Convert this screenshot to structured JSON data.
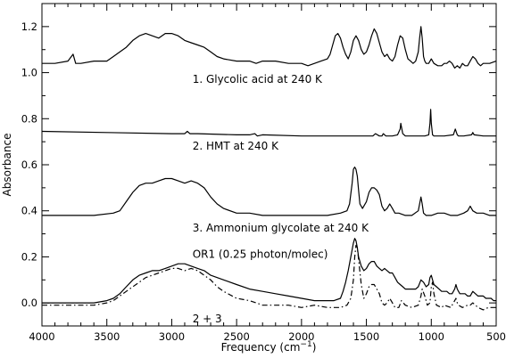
{
  "chart_data": {
    "type": "line",
    "xlabel_main": "Frequency (cm",
    "xlabel_sup": "−1",
    "xlabel_end": ")",
    "ylabel": "Absorbance",
    "xlim": [
      4000,
      500
    ],
    "ylim": [
      -0.1,
      1.3
    ],
    "x_reversed": true,
    "x_ticks": [
      4000,
      3500,
      3000,
      2500,
      2000,
      1500,
      1000,
      500
    ],
    "x_tick_labels": [
      "4000",
      "3500",
      "3000",
      "2500",
      "2000",
      "1500",
      "1000",
      "500"
    ],
    "y_ticks": [
      0.0,
      0.2,
      0.4,
      0.6,
      0.8,
      1.0,
      1.2
    ],
    "y_tick_labels": [
      "0.0",
      "0.2",
      "0.4",
      "0.6",
      "0.8",
      "1.0",
      "1.2"
    ],
    "grid": false,
    "legend": "none",
    "annotations": [
      {
        "text": "1. Glycolic acid at 240 K",
        "x": 2840,
        "y": 0.955
      },
      {
        "text": "2. HMT at 240 K",
        "x": 2840,
        "y": 0.665
      },
      {
        "text": "3. Ammonium glycolate at 240 K",
        "x": 2840,
        "y": 0.31
      },
      {
        "text": "OR1 (0.25 photon/molec)",
        "x": 2840,
        "y": 0.195
      },
      {
        "text": "2 + 3",
        "x": 2840,
        "y": -0.085
      }
    ],
    "series": [
      {
        "style": "solid",
        "x": [
          4000,
          3900,
          3800,
          3760,
          3740,
          3720,
          3700,
          3600,
          3500,
          3450,
          3400,
          3350,
          3300,
          3250,
          3200,
          3150,
          3100,
          3050,
          3000,
          2950,
          2900,
          2850,
          2800,
          2750,
          2700,
          2650,
          2600,
          2500,
          2400,
          2350,
          2300,
          2200,
          2100,
          2000,
          1950,
          1900,
          1850,
          1800,
          1780,
          1760,
          1740,
          1720,
          1700,
          1680,
          1660,
          1640,
          1620,
          1600,
          1580,
          1560,
          1540,
          1520,
          1500,
          1480,
          1460,
          1440,
          1420,
          1400,
          1380,
          1360,
          1340,
          1320,
          1300,
          1280,
          1260,
          1240,
          1220,
          1200,
          1180,
          1160,
          1140,
          1120,
          1100,
          1090,
          1080,
          1070,
          1060,
          1050,
          1040,
          1020,
          1000,
          980,
          950,
          920,
          900,
          880,
          860,
          840,
          820,
          800,
          780,
          760,
          740,
          720,
          700,
          680,
          660,
          640,
          620,
          600,
          550,
          500
        ],
        "y": [
          1.04,
          1.04,
          1.05,
          1.08,
          1.04,
          1.04,
          1.04,
          1.05,
          1.05,
          1.07,
          1.09,
          1.11,
          1.14,
          1.16,
          1.17,
          1.16,
          1.15,
          1.17,
          1.17,
          1.16,
          1.14,
          1.13,
          1.12,
          1.11,
          1.09,
          1.07,
          1.06,
          1.05,
          1.05,
          1.04,
          1.05,
          1.05,
          1.04,
          1.04,
          1.03,
          1.04,
          1.05,
          1.06,
          1.08,
          1.12,
          1.16,
          1.17,
          1.15,
          1.11,
          1.08,
          1.06,
          1.09,
          1.14,
          1.16,
          1.14,
          1.1,
          1.08,
          1.09,
          1.12,
          1.16,
          1.19,
          1.17,
          1.13,
          1.09,
          1.07,
          1.08,
          1.06,
          1.05,
          1.07,
          1.12,
          1.16,
          1.15,
          1.1,
          1.06,
          1.05,
          1.04,
          1.05,
          1.09,
          1.15,
          1.2,
          1.15,
          1.07,
          1.05,
          1.04,
          1.04,
          1.06,
          1.04,
          1.03,
          1.03,
          1.04,
          1.04,
          1.05,
          1.04,
          1.02,
          1.03,
          1.02,
          1.04,
          1.03,
          1.03,
          1.05,
          1.07,
          1.06,
          1.04,
          1.03,
          1.04,
          1.04,
          1.05
        ]
      },
      {
        "style": "solid",
        "x": [
          4000,
          3500,
          3000,
          2900,
          2880,
          2860,
          2800,
          2500,
          2400,
          2360,
          2340,
          2300,
          2000,
          1700,
          1500,
          1450,
          1430,
          1400,
          1380,
          1370,
          1350,
          1300,
          1260,
          1240,
          1235,
          1220,
          1200,
          1100,
          1050,
          1020,
          1010,
          1005,
          1000,
          990,
          980,
          950,
          900,
          830,
          815,
          800,
          790,
          750,
          690,
          680,
          670,
          600,
          500
        ],
        "y": [
          0.745,
          0.74,
          0.735,
          0.735,
          0.745,
          0.735,
          0.735,
          0.73,
          0.73,
          0.735,
          0.725,
          0.73,
          0.725,
          0.725,
          0.725,
          0.725,
          0.735,
          0.725,
          0.725,
          0.735,
          0.725,
          0.725,
          0.73,
          0.755,
          0.78,
          0.735,
          0.725,
          0.725,
          0.725,
          0.73,
          0.78,
          0.84,
          0.78,
          0.73,
          0.725,
          0.725,
          0.725,
          0.73,
          0.755,
          0.73,
          0.725,
          0.725,
          0.73,
          0.74,
          0.73,
          0.725,
          0.725
        ]
      },
      {
        "style": "solid",
        "x": [
          4000,
          3800,
          3600,
          3450,
          3400,
          3350,
          3300,
          3250,
          3200,
          3150,
          3100,
          3050,
          3000,
          2950,
          2900,
          2850,
          2800,
          2750,
          2700,
          2650,
          2600,
          2500,
          2400,
          2300,
          2200,
          2100,
          2000,
          1800,
          1700,
          1650,
          1630,
          1610,
          1600,
          1590,
          1580,
          1570,
          1560,
          1550,
          1530,
          1500,
          1480,
          1460,
          1440,
          1420,
          1400,
          1380,
          1360,
          1340,
          1320,
          1300,
          1280,
          1250,
          1200,
          1150,
          1100,
          1090,
          1080,
          1070,
          1060,
          1040,
          1000,
          950,
          900,
          850,
          800,
          750,
          720,
          700,
          680,
          650,
          600,
          550,
          500
        ],
        "y": [
          0.38,
          0.38,
          0.38,
          0.39,
          0.4,
          0.44,
          0.48,
          0.51,
          0.52,
          0.52,
          0.53,
          0.54,
          0.54,
          0.53,
          0.52,
          0.53,
          0.52,
          0.5,
          0.46,
          0.43,
          0.41,
          0.39,
          0.39,
          0.38,
          0.38,
          0.38,
          0.38,
          0.38,
          0.39,
          0.4,
          0.43,
          0.52,
          0.58,
          0.59,
          0.58,
          0.55,
          0.49,
          0.43,
          0.41,
          0.44,
          0.48,
          0.5,
          0.5,
          0.49,
          0.47,
          0.42,
          0.4,
          0.41,
          0.43,
          0.41,
          0.39,
          0.39,
          0.38,
          0.38,
          0.4,
          0.43,
          0.46,
          0.43,
          0.39,
          0.38,
          0.38,
          0.39,
          0.39,
          0.38,
          0.38,
          0.39,
          0.4,
          0.42,
          0.4,
          0.39,
          0.39,
          0.38,
          0.38
        ]
      },
      {
        "style": "solid",
        "x": [
          4000,
          3800,
          3600,
          3500,
          3450,
          3400,
          3350,
          3300,
          3250,
          3200,
          3150,
          3100,
          3050,
          3000,
          2950,
          2900,
          2850,
          2800,
          2750,
          2700,
          2600,
          2500,
          2400,
          2300,
          2200,
          2100,
          2000,
          1900,
          1800,
          1750,
          1700,
          1680,
          1660,
          1640,
          1620,
          1600,
          1590,
          1580,
          1570,
          1560,
          1540,
          1520,
          1500,
          1480,
          1460,
          1440,
          1420,
          1400,
          1380,
          1360,
          1340,
          1320,
          1300,
          1280,
          1260,
          1240,
          1220,
          1200,
          1150,
          1120,
          1100,
          1080,
          1060,
          1040,
          1020,
          1010,
          1000,
          990,
          980,
          960,
          940,
          920,
          900,
          880,
          860,
          840,
          820,
          810,
          800,
          790,
          780,
          760,
          740,
          720,
          700,
          680,
          660,
          640,
          620,
          600,
          580,
          560,
          540,
          520,
          500
        ],
        "y": [
          0.0,
          0.0,
          0.0,
          0.01,
          0.02,
          0.04,
          0.07,
          0.1,
          0.12,
          0.13,
          0.14,
          0.14,
          0.15,
          0.16,
          0.17,
          0.17,
          0.16,
          0.15,
          0.14,
          0.12,
          0.1,
          0.08,
          0.06,
          0.05,
          0.04,
          0.03,
          0.02,
          0.01,
          0.01,
          0.01,
          0.02,
          0.05,
          0.09,
          0.14,
          0.2,
          0.26,
          0.28,
          0.27,
          0.24,
          0.2,
          0.16,
          0.14,
          0.15,
          0.17,
          0.18,
          0.18,
          0.16,
          0.15,
          0.14,
          0.15,
          0.14,
          0.13,
          0.13,
          0.11,
          0.09,
          0.08,
          0.07,
          0.06,
          0.06,
          0.06,
          0.07,
          0.1,
          0.09,
          0.07,
          0.08,
          0.11,
          0.12,
          0.1,
          0.08,
          0.07,
          0.06,
          0.05,
          0.05,
          0.05,
          0.04,
          0.04,
          0.06,
          0.08,
          0.06,
          0.05,
          0.04,
          0.04,
          0.04,
          0.03,
          0.03,
          0.05,
          0.04,
          0.03,
          0.03,
          0.03,
          0.02,
          0.02,
          0.02,
          0.01,
          0.01
        ]
      },
      {
        "style": "dash-dot",
        "x": [
          4000,
          3800,
          3600,
          3500,
          3450,
          3400,
          3350,
          3300,
          3250,
          3200,
          3150,
          3100,
          3050,
          3000,
          2950,
          2900,
          2850,
          2800,
          2750,
          2700,
          2650,
          2600,
          2500,
          2400,
          2350,
          2300,
          2200,
          2100,
          2000,
          1900,
          1800,
          1700,
          1650,
          1620,
          1600,
          1590,
          1580,
          1570,
          1560,
          1540,
          1520,
          1500,
          1480,
          1460,
          1440,
          1420,
          1400,
          1380,
          1360,
          1340,
          1320,
          1300,
          1280,
          1250,
          1230,
          1200,
          1150,
          1100,
          1080,
          1070,
          1050,
          1030,
          1010,
          1000,
          990,
          980,
          960,
          920,
          900,
          850,
          820,
          810,
          800,
          790,
          760,
          720,
          700,
          680,
          660,
          640,
          600,
          560,
          520,
          500
        ],
        "y": [
          -0.01,
          -0.01,
          -0.01,
          0.0,
          0.01,
          0.03,
          0.05,
          0.07,
          0.09,
          0.11,
          0.12,
          0.13,
          0.14,
          0.15,
          0.15,
          0.14,
          0.15,
          0.14,
          0.12,
          0.1,
          0.07,
          0.05,
          0.02,
          0.01,
          0.0,
          -0.01,
          -0.01,
          -0.01,
          -0.02,
          -0.01,
          -0.02,
          -0.02,
          -0.01,
          0.02,
          0.1,
          0.2,
          0.25,
          0.24,
          0.19,
          0.08,
          0.02,
          0.04,
          0.07,
          0.08,
          0.08,
          0.06,
          0.04,
          0.0,
          -0.01,
          0.0,
          0.02,
          0.0,
          -0.02,
          -0.02,
          0.01,
          -0.01,
          -0.02,
          -0.01,
          0.03,
          0.06,
          0.03,
          -0.01,
          0.0,
          0.07,
          0.09,
          0.04,
          -0.01,
          -0.02,
          -0.01,
          -0.02,
          0.01,
          0.02,
          0.0,
          -0.01,
          -0.02,
          -0.01,
          -0.01,
          0.0,
          -0.01,
          -0.02,
          -0.03,
          -0.02,
          -0.02,
          -0.02
        ]
      }
    ]
  }
}
